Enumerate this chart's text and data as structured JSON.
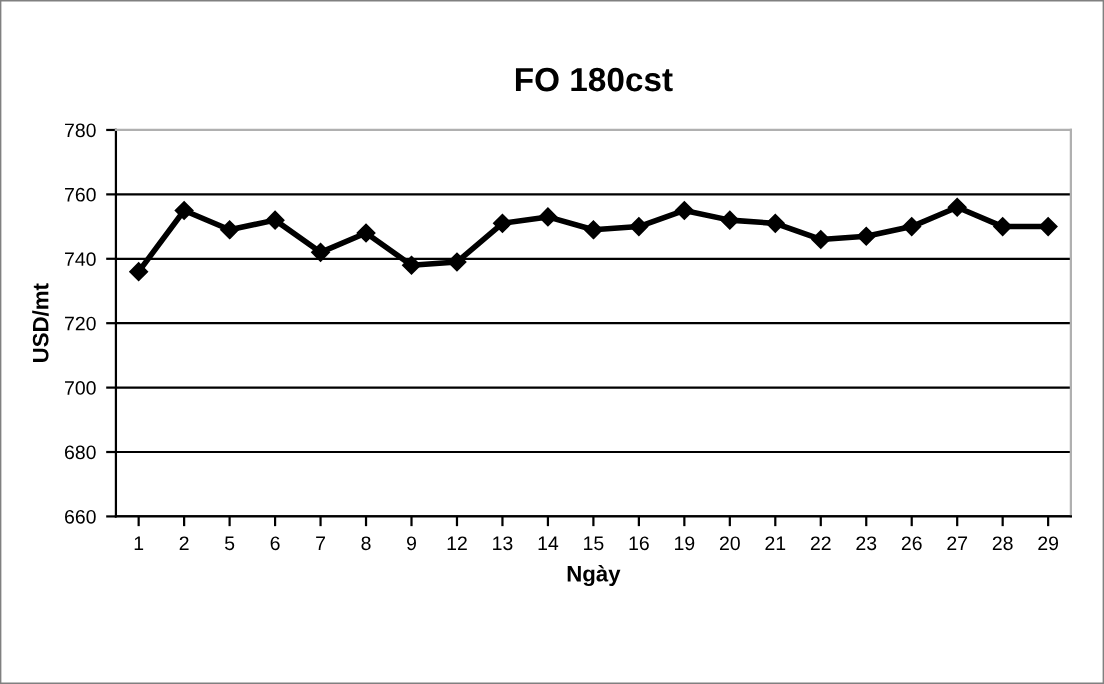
{
  "chart_data": {
    "type": "line",
    "title": "FO 180cst",
    "xlabel": "Ngày",
    "ylabel": "USD/mt",
    "categories": [
      "1",
      "2",
      "5",
      "6",
      "7",
      "8",
      "9",
      "12",
      "13",
      "14",
      "15",
      "16",
      "19",
      "20",
      "21",
      "22",
      "23",
      "26",
      "27",
      "28",
      "29"
    ],
    "series": [
      {
        "color": "#000000",
        "values": [
          736,
          755,
          749,
          752,
          742,
          748,
          738,
          739,
          751,
          753,
          749,
          750,
          755,
          752,
          751,
          746,
          747,
          750,
          756,
          750,
          750
        ]
      }
    ],
    "ylim": [
      660,
      780
    ],
    "yticks": [
      660,
      680,
      700,
      720,
      740,
      760,
      780
    ],
    "grid": "y",
    "marker": "diamond",
    "line_style": "solid",
    "legend": false
  }
}
